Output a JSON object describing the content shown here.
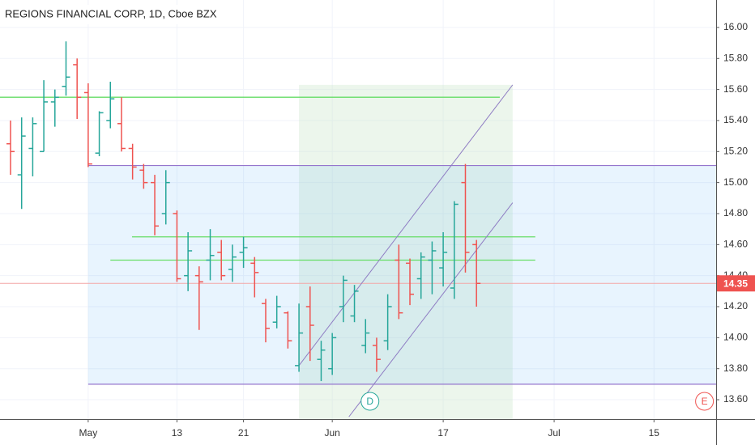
{
  "chart_data": {
    "type": "ohlc",
    "title": "REGIONS FINANCIAL CORP, 1D, Cboe BZX",
    "up_color": "#26a69a",
    "down_color": "#ef5350",
    "xlim": [
      -0.95,
      63.6
    ],
    "xticks": [
      {
        "value": 7,
        "label": "May"
      },
      {
        "value": 15,
        "label": "13"
      },
      {
        "value": 21,
        "label": "21"
      },
      {
        "value": 29,
        "label": "Jun"
      },
      {
        "value": 39,
        "label": "17"
      },
      {
        "value": 49,
        "label": "Jul"
      },
      {
        "value": 58,
        "label": "15"
      }
    ],
    "ylim": [
      13.475,
      16.177
    ],
    "yticks": [
      {
        "value": 13.6,
        "label": "13.60"
      },
      {
        "value": 13.8,
        "label": "13.80"
      },
      {
        "value": 14,
        "label": "14.00"
      },
      {
        "value": 14.2,
        "label": "14.20"
      },
      {
        "value": 14.4,
        "label": "14.40"
      },
      {
        "value": 14.6,
        "label": "14.60"
      },
      {
        "value": 14.8,
        "label": "14.80"
      },
      {
        "value": 15,
        "label": "15.00"
      },
      {
        "value": 15.2,
        "label": "15.20"
      },
      {
        "value": 15.4,
        "label": "15.40"
      },
      {
        "value": 15.6,
        "label": "15.60"
      },
      {
        "value": 15.8,
        "label": "15.80"
      },
      {
        "value": 16,
        "label": "16.00"
      }
    ],
    "grid": true,
    "x": [
      0,
      1,
      2,
      3,
      4,
      5,
      6,
      7,
      8,
      9,
      10,
      11,
      12,
      13,
      14,
      15,
      16,
      17,
      18,
      19,
      20,
      21,
      22,
      23,
      24,
      25,
      26,
      27,
      28,
      29,
      30,
      31,
      32,
      33,
      34,
      35,
      36,
      37,
      38,
      39,
      40,
      41,
      42
    ],
    "open": [
      15.25,
      15.05,
      15.22,
      15.2,
      15.52,
      15.62,
      15.76,
      15.58,
      15.19,
      15.4,
      15.38,
      15.22,
      15.08,
      15.0,
      14.8,
      14.8,
      14.4,
      14.4,
      14.5,
      14.55,
      14.44,
      14.55,
      14.48,
      14.22,
      14.1,
      14.16,
      13.82,
      14.2,
      13.86,
      13.8,
      14.2,
      14.14,
      13.95,
      13.95,
      13.98,
      14.5,
      14.48,
      14.38,
      14.5,
      14.45,
      14.32,
      15.0,
      14.6
    ],
    "high": [
      15.4,
      15.42,
      15.42,
      15.66,
      15.6,
      15.91,
      15.8,
      15.64,
      15.46,
      15.65,
      15.55,
      15.25,
      15.12,
      15.05,
      15.08,
      14.82,
      14.68,
      14.46,
      14.7,
      14.63,
      14.6,
      14.65,
      14.52,
      14.25,
      14.27,
      14.17,
      14.22,
      14.33,
      13.98,
      14.03,
      14.4,
      14.34,
      14.12,
      14.0,
      14.28,
      14.6,
      14.51,
      14.55,
      14.62,
      14.68,
      14.88,
      15.12,
      14.63
    ],
    "low": [
      15.05,
      14.83,
      15.04,
      15.2,
      15.36,
      15.56,
      15.41,
      15.1,
      15.17,
      15.35,
      15.2,
      15.02,
      14.96,
      14.66,
      14.73,
      14.36,
      14.3,
      14.05,
      14.37,
      14.37,
      14.36,
      14.45,
      14.26,
      13.97,
      14.06,
      13.93,
      13.78,
      13.85,
      13.72,
      13.76,
      14.1,
      14.1,
      13.9,
      13.78,
      13.92,
      14.12,
      14.21,
      14.25,
      14.28,
      14.33,
      14.25,
      14.42,
      14.2
    ],
    "close": [
      15.2,
      15.3,
      15.38,
      15.52,
      15.55,
      15.68,
      15.55,
      15.12,
      15.45,
      15.54,
      15.22,
      15.1,
      15.0,
      14.72,
      15.0,
      14.38,
      14.56,
      14.36,
      14.53,
      14.4,
      14.52,
      14.58,
      14.42,
      14.06,
      14.2,
      13.98,
      14.03,
      14.08,
      13.92,
      14.0,
      14.37,
      14.3,
      14.03,
      13.86,
      14.2,
      14.16,
      14.28,
      14.52,
      14.56,
      14.55,
      14.86,
      14.55,
      14.35
    ],
    "last_price": {
      "value": 14.35,
      "label": "14.35"
    },
    "rectangle": {
      "x": [
        7,
        63.6
      ],
      "y": [
        13.7,
        15.11
      ]
    },
    "date_range": {
      "x": [
        26,
        45.26
      ],
      "y": [
        13.475,
        15.63
      ]
    },
    "hlines": [
      {
        "value": 15.55,
        "x": [
          -0.95,
          44.1
        ]
      },
      {
        "value": 14.65,
        "x": [
          10.95,
          47.3
        ]
      },
      {
        "value": 14.5,
        "x": [
          9,
          47.3
        ]
      }
    ],
    "channel": [
      {
        "x": [
          26,
          45.26
        ],
        "y": [
          13.82,
          15.63
        ]
      },
      {
        "x": [
          30.5,
          45.26
        ],
        "y": [
          13.49,
          14.87
        ]
      }
    ],
    "events": [
      {
        "x": 32.4,
        "label": "D",
        "color": "#26a69a"
      },
      {
        "x": 62.55,
        "label": "E",
        "color": "#ef5350"
      }
    ]
  }
}
